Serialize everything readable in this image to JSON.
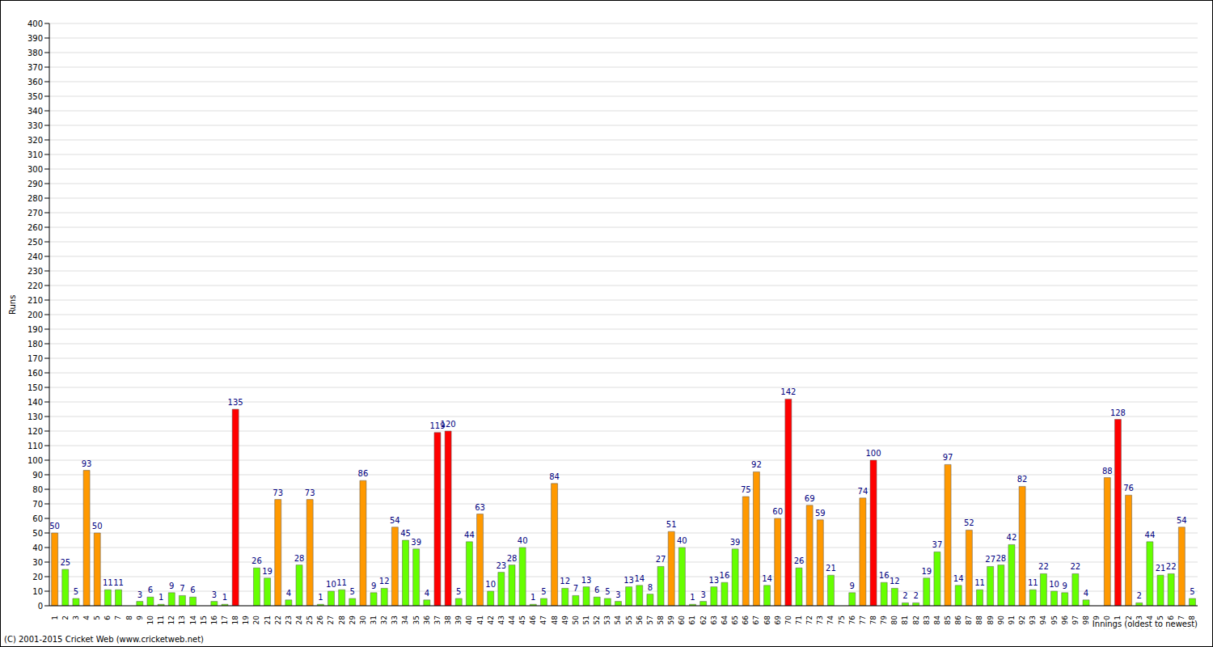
{
  "chart_data": {
    "type": "bar",
    "x_label": "Innings (oldest to newest)",
    "y_label": "Runs",
    "annotations": [
      "(C) 2001-2015 Cricket Web (www.cricketweb.net)"
    ],
    "categories": [
      "1",
      "2",
      "3",
      "4",
      "5",
      "6",
      "7",
      "8",
      "9",
      "10",
      "11",
      "12",
      "13",
      "14",
      "15",
      "16",
      "17",
      "18",
      "19",
      "20",
      "21",
      "22",
      "23",
      "24",
      "25",
      "26",
      "27",
      "28",
      "29",
      "30",
      "31",
      "32",
      "33",
      "34",
      "35",
      "36",
      "37",
      "38",
      "39",
      "40",
      "41",
      "42",
      "43",
      "44",
      "45",
      "46",
      "47",
      "48",
      "49",
      "50",
      "51",
      "52",
      "53",
      "54",
      "55",
      "56",
      "57",
      "58",
      "59",
      "60",
      "61",
      "62",
      "63",
      "64",
      "65",
      "66",
      "67",
      "68",
      "69",
      "70",
      "71",
      "72",
      "73",
      "74",
      "75",
      "76",
      "77",
      "78",
      "79",
      "80",
      "81",
      "82",
      "83",
      "84",
      "85",
      "86",
      "87",
      "88",
      "89",
      "90",
      "91",
      "92",
      "93",
      "94",
      "95",
      "96",
      "97",
      "98",
      "99",
      "100",
      "101",
      "102",
      "103",
      "104",
      "105",
      "106",
      "107",
      "108"
    ],
    "values": [
      50,
      25,
      5,
      93,
      50,
      11,
      11,
      0,
      3,
      6,
      1,
      9,
      7,
      6,
      0,
      3,
      1,
      135,
      0,
      26,
      19,
      73,
      4,
      28,
      73,
      1,
      10,
      11,
      5,
      86,
      9,
      12,
      54,
      45,
      39,
      4,
      119,
      120,
      5,
      44,
      63,
      10,
      23,
      28,
      40,
      1,
      5,
      84,
      12,
      7,
      13,
      6,
      5,
      3,
      13,
      14,
      8,
      27,
      51,
      40,
      1,
      3,
      13,
      16,
      39,
      75,
      92,
      14,
      60,
      142,
      26,
      69,
      59,
      21,
      0,
      9,
      74,
      100,
      16,
      12,
      2,
      2,
      19,
      37,
      97,
      14,
      52,
      11,
      27,
      28,
      42,
      82,
      11,
      22,
      10,
      9,
      22,
      4,
      0,
      88,
      128,
      76,
      2,
      44,
      21,
      22,
      54,
      5
    ],
    "colors": [
      "#ff9900",
      "#66ff00",
      "#66ff00",
      "#ff9900",
      "#ff9900",
      "#66ff00",
      "#66ff00",
      "#66ff00",
      "#66ff00",
      "#66ff00",
      "#66ff00",
      "#66ff00",
      "#66ff00",
      "#66ff00",
      "#66ff00",
      "#66ff00",
      "#66ff00",
      "#ff0000",
      "#66ff00",
      "#66ff00",
      "#66ff00",
      "#ff9900",
      "#66ff00",
      "#66ff00",
      "#ff9900",
      "#66ff00",
      "#66ff00",
      "#66ff00",
      "#66ff00",
      "#ff9900",
      "#66ff00",
      "#66ff00",
      "#ff9900",
      "#66ff00",
      "#66ff00",
      "#66ff00",
      "#ff0000",
      "#ff0000",
      "#66ff00",
      "#66ff00",
      "#ff9900",
      "#66ff00",
      "#66ff00",
      "#66ff00",
      "#66ff00",
      "#66ff00",
      "#66ff00",
      "#ff9900",
      "#66ff00",
      "#66ff00",
      "#66ff00",
      "#66ff00",
      "#66ff00",
      "#66ff00",
      "#66ff00",
      "#66ff00",
      "#66ff00",
      "#66ff00",
      "#ff9900",
      "#66ff00",
      "#66ff00",
      "#66ff00",
      "#66ff00",
      "#66ff00",
      "#66ff00",
      "#ff9900",
      "#ff9900",
      "#66ff00",
      "#ff9900",
      "#ff0000",
      "#66ff00",
      "#ff9900",
      "#ff9900",
      "#66ff00",
      "#66ff00",
      "#66ff00",
      "#ff9900",
      "#ff0000",
      "#66ff00",
      "#66ff00",
      "#66ff00",
      "#66ff00",
      "#66ff00",
      "#66ff00",
      "#ff9900",
      "#66ff00",
      "#ff9900",
      "#66ff00",
      "#66ff00",
      "#66ff00",
      "#66ff00",
      "#ff9900",
      "#66ff00",
      "#66ff00",
      "#66ff00",
      "#66ff00",
      "#66ff00",
      "#66ff00",
      "#66ff00",
      "#ff9900",
      "#ff0000",
      "#ff9900",
      "#66ff00",
      "#66ff00",
      "#66ff00",
      "#66ff00",
      "#ff9900",
      "#66ff00"
    ],
    "ylim": [
      0,
      400
    ],
    "yticks": [
      0,
      10,
      20,
      30,
      40,
      50,
      60,
      70,
      80,
      90,
      100,
      110,
      120,
      130,
      140,
      150,
      160,
      170,
      180,
      190,
      200,
      210,
      220,
      230,
      240,
      250,
      260,
      270,
      280,
      290,
      300,
      310,
      320,
      330,
      340,
      350,
      360,
      370,
      380,
      390,
      400
    ],
    "grid": true,
    "data_labels": true
  }
}
